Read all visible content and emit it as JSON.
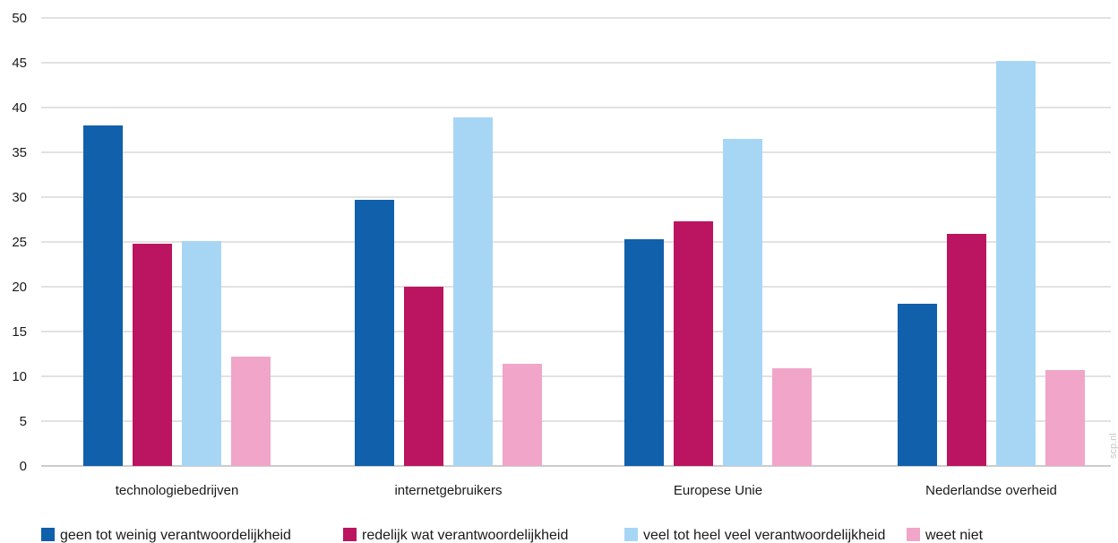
{
  "chart_data": {
    "type": "bar",
    "title": "",
    "xlabel": "",
    "ylabel": "",
    "ylim": [
      0,
      50
    ],
    "yticks": [
      0,
      5,
      10,
      15,
      20,
      25,
      30,
      35,
      40,
      45,
      50
    ],
    "grid": true,
    "legend_position": "bottom",
    "categories": [
      "technologiebedrijven",
      "internetgebruikers",
      "Europese Unie",
      "Nederlandse overheid"
    ],
    "series": [
      {
        "name": "geen tot weinig verantwoordelijkheid",
        "color": "#1060ab",
        "values": [
          38.0,
          29.7,
          25.3,
          18.1
        ]
      },
      {
        "name": "redelijk wat verantwoordelijkheid",
        "color": "#bb1460",
        "values": [
          24.8,
          20.0,
          27.3,
          25.9
        ]
      },
      {
        "name": "veel tot heel veel verantwoordelijkheid",
        "color": "#a7d6f5",
        "values": [
          25.1,
          38.9,
          36.5,
          45.2
        ]
      },
      {
        "name": "weet niet",
        "color": "#f0a5c9",
        "values": [
          12.2,
          11.4,
          10.9,
          10.7
        ]
      }
    ],
    "watermark": "scp.nl"
  }
}
